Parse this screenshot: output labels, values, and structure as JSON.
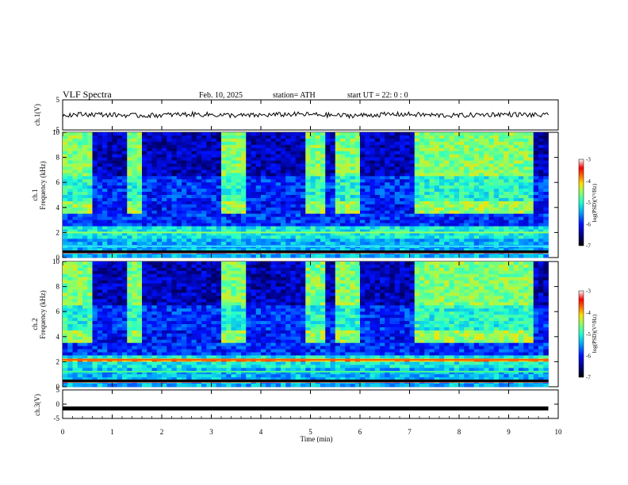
{
  "header": {
    "title": "VLF  Spectra",
    "date": "Feb. 10, 2025",
    "station": "station= ATH",
    "start": "start  UT  =   22: 0  : 0"
  },
  "chart_data": [
    {
      "type": "line",
      "panel": "ch1-waveform",
      "ylabel": "ch.1(V)",
      "ylim": [
        -5,
        5
      ],
      "yticks": [
        "5",
        "-5"
      ],
      "xlim": [
        0,
        10
      ],
      "note_values": "waveform near 0 V with small fluctuations around ±1 V"
    },
    {
      "type": "heatmap",
      "panel": "ch1-spectrogram",
      "ylabel": "ch.1\nFrequency (kHz)",
      "ylabel_top": "ch.1",
      "ylabel_bottom": "Frequency (kHz)",
      "ylim": [
        0,
        10
      ],
      "yticks": [
        "0",
        "2",
        "4",
        "6",
        "8",
        "10"
      ],
      "xlim": [
        0,
        9.8
      ],
      "strong_intervals_min": [
        [
          0,
          0.55
        ],
        [
          1.3,
          1.65
        ],
        [
          3.25,
          3.7
        ],
        [
          4.9,
          5.35
        ],
        [
          5.55,
          5.95
        ],
        [
          7.1,
          9.5
        ]
      ],
      "colorbar": {
        "label": "log(PSD)(V²/Hz)",
        "ticks": [
          "-3",
          "-4",
          "-5",
          "-6",
          "-7"
        ],
        "range": [
          -7,
          -3
        ]
      }
    },
    {
      "type": "heatmap",
      "panel": "ch2-spectrogram",
      "ylabel_top": "ch.2",
      "ylabel_bottom": "Frequency (kHz)",
      "ylim": [
        0,
        10
      ],
      "yticks": [
        "0",
        "2",
        "4",
        "6",
        "8",
        "10"
      ],
      "xlim": [
        0,
        9.8
      ],
      "colorbar": {
        "label": "log(PSD)(V²/Hz)",
        "ticks": [
          "-3",
          "-4",
          "-5",
          "-6",
          "-7"
        ],
        "range": [
          -7,
          -3
        ]
      }
    },
    {
      "type": "line",
      "panel": "ch3-waveform",
      "ylabel": "ch.3(V)",
      "ylim": [
        -5,
        5
      ],
      "yticks": [
        "5",
        "0",
        "-5"
      ],
      "x": [
        0,
        9.8
      ],
      "y": [
        -1.5,
        -1.5
      ]
    }
  ],
  "xaxis": {
    "label": "Time  (min)",
    "ticks": [
      "0",
      "1",
      "2",
      "3",
      "4",
      "5",
      "6",
      "7",
      "8",
      "9",
      "10"
    ]
  }
}
